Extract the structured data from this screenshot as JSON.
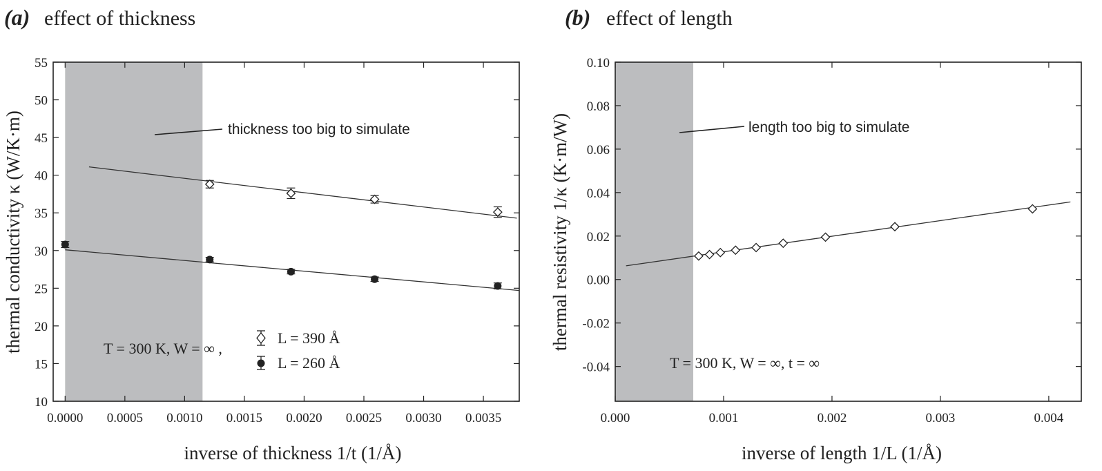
{
  "chart_data": [
    {
      "type": "scatter",
      "panel_letter": "(a)",
      "title": "effect of thickness",
      "xlabel": "inverse of thickness 1/t (1/Å)",
      "ylabel": "thermal conductivity κ (W/K·m)",
      "xlim": [
        -0.0001,
        0.0038
      ],
      "ylim": [
        10,
        55
      ],
      "xticks": [
        "0.0000",
        "0.0005",
        "0.0010",
        "0.0015",
        "0.0020",
        "0.0025",
        "0.0030",
        "0.0035"
      ],
      "yticks": [
        "10",
        "15",
        "20",
        "25",
        "30",
        "35",
        "40",
        "45",
        "50",
        "55"
      ],
      "grid": false,
      "shaded_region": {
        "x": [
          0,
          0.00115
        ],
        "label": "thickness too big to simulate"
      },
      "conditions_label": "T = 300 K, W =  ∞ ,",
      "series": [
        {
          "name": "L = 390 Å",
          "marker": "open-diamond",
          "points": [
            {
              "x": 0.00121,
              "y": 38.8,
              "err": 0.5
            },
            {
              "x": 0.00189,
              "y": 37.6,
              "err": 0.7
            },
            {
              "x": 0.00259,
              "y": 36.8,
              "err": 0.5
            },
            {
              "x": 0.00362,
              "y": 35.1,
              "err": 0.7
            }
          ],
          "fit": {
            "x": [
              0.0002,
              0.00378
            ],
            "y": [
              41.1,
              34.3
            ]
          }
        },
        {
          "name": "L = 260 Å",
          "marker": "filled-circle",
          "points": [
            {
              "x": 0.0,
              "y": 30.8,
              "err": 0.4
            },
            {
              "x": 0.00121,
              "y": 28.8,
              "err": 0.3
            },
            {
              "x": 0.00189,
              "y": 27.2,
              "err": 0.3
            },
            {
              "x": 0.00259,
              "y": 26.2,
              "err": 0.3
            },
            {
              "x": 0.00362,
              "y": 25.3,
              "err": 0.4
            }
          ],
          "fit": {
            "x": [
              0.0,
              0.0038
            ],
            "y": [
              30.1,
              24.7
            ]
          }
        }
      ]
    },
    {
      "type": "scatter",
      "panel_letter": "(b)",
      "title": "effect of length",
      "xlabel": "inverse of length 1/L (1/Å)",
      "ylabel": "thermal resistivity 1/κ (K·m/W)",
      "xlim": [
        0.0,
        0.0043
      ],
      "ylim": [
        -0.056,
        0.1
      ],
      "xticks": [
        "0.000",
        "0.001",
        "0.002",
        "0.003",
        "0.004"
      ],
      "yticks": [
        "-0.04",
        "-0.02",
        "0.00",
        "0.02",
        "0.04",
        "0.06",
        "0.08",
        "0.10"
      ],
      "grid": false,
      "shaded_region": {
        "x": [
          0.0,
          0.00072
        ],
        "label": "length too big to simulate"
      },
      "conditions_label": "T = 300 K, W =  ∞, t = ∞",
      "series": [
        {
          "name": "",
          "marker": "open-diamond",
          "points": [
            {
              "x": 0.00077,
              "y": 0.0108
            },
            {
              "x": 0.00087,
              "y": 0.0115
            },
            {
              "x": 0.00097,
              "y": 0.0124
            },
            {
              "x": 0.00111,
              "y": 0.0135
            },
            {
              "x": 0.0013,
              "y": 0.0147
            },
            {
              "x": 0.00155,
              "y": 0.0167
            },
            {
              "x": 0.00194,
              "y": 0.0195
            },
            {
              "x": 0.00258,
              "y": 0.0243
            },
            {
              "x": 0.00385,
              "y": 0.0325
            }
          ],
          "fit": {
            "x": [
              0.0001,
              0.0042
            ],
            "y": [
              0.0063,
              0.0357
            ]
          }
        }
      ]
    }
  ]
}
